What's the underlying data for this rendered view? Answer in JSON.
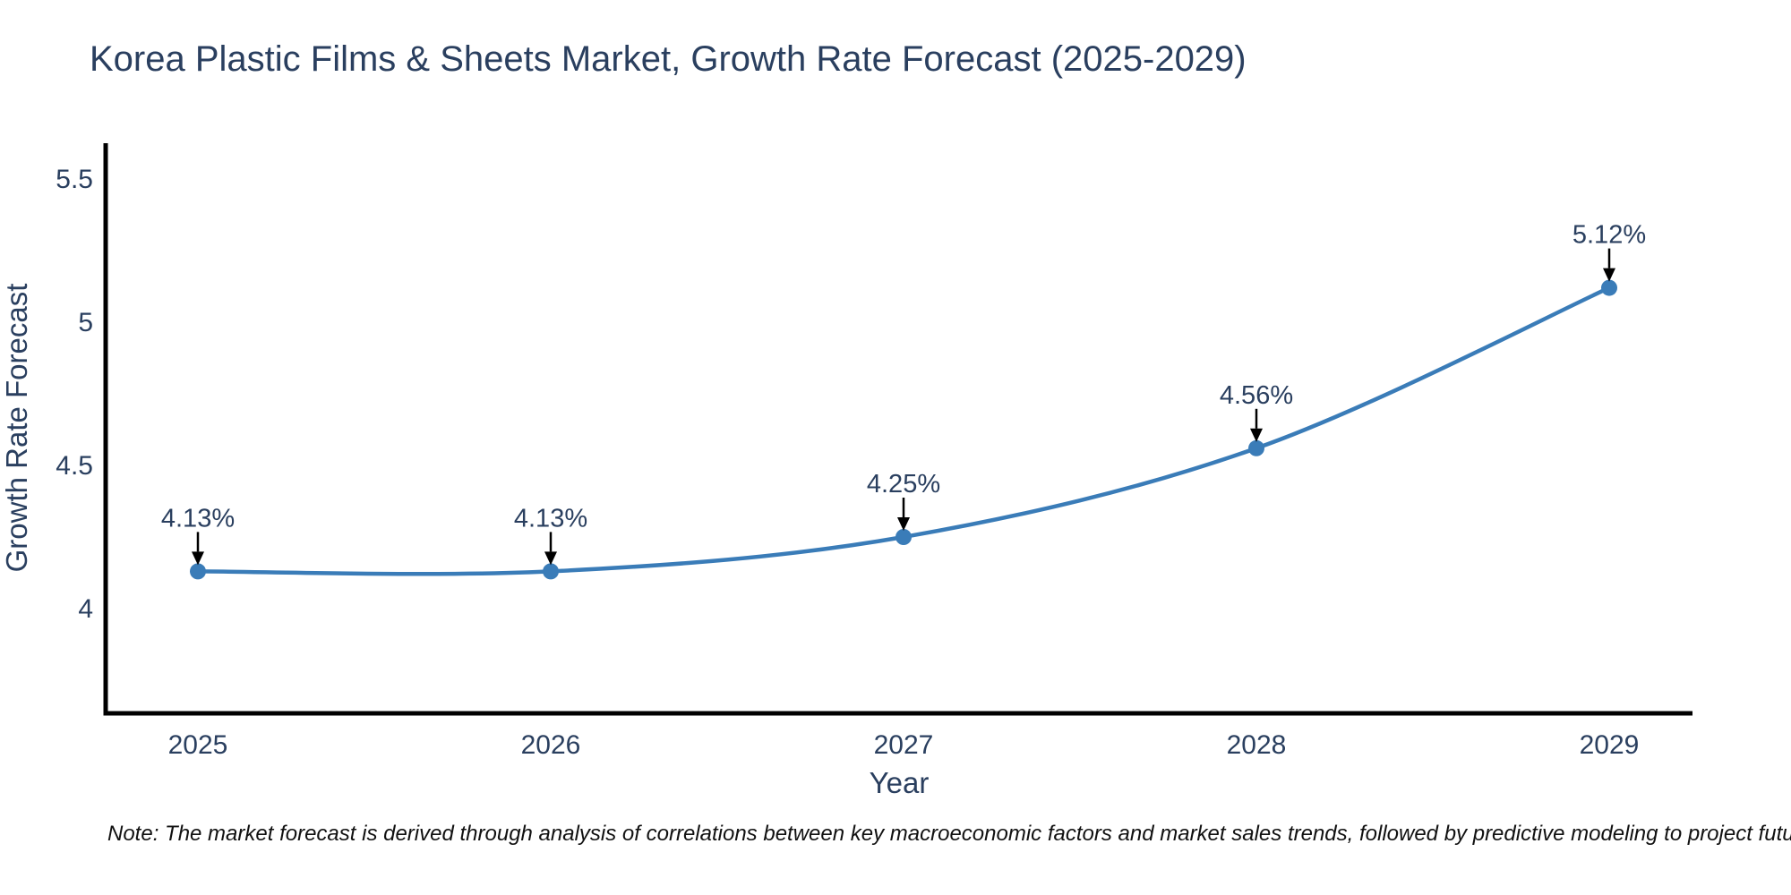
{
  "title": "Korea Plastic Films & Sheets Market, Growth Rate Forecast (2025-2029)",
  "note": "Note: The market forecast is derived through analysis of correlations between key macroeconomic factors and market sales trends, followed by predictive modeling to project future sales",
  "chart_data": {
    "type": "line",
    "title": "Korea Plastic Films & Sheets Market, Growth Rate Forecast (2025-2029)",
    "x": [
      2025,
      2026,
      2027,
      2028,
      2029
    ],
    "series": [
      {
        "name": "Growth Rate Forecast",
        "values": [
          4.13,
          4.13,
          4.25,
          4.56,
          5.12
        ]
      }
    ],
    "point_labels": [
      "4.13%",
      "4.13%",
      "4.25%",
      "4.56%",
      "5.12%"
    ],
    "xlabel": "Year",
    "ylabel": "Growth Rate Forecast",
    "xtick_labels": [
      "2025",
      "2026",
      "2027",
      "2028",
      "2029"
    ],
    "yticks": [
      4,
      4.5,
      5,
      5.5
    ],
    "ytick_labels": [
      "4",
      "4.5",
      "5",
      "5.5"
    ],
    "ylim": [
      3.64,
      5.63
    ],
    "line_shape": "spline",
    "grid": false,
    "legend": "none",
    "annotation_arrows": true,
    "colors": {
      "line": "#3a7cb8",
      "marker": "#3a7cb8",
      "axis": "#000000",
      "text": "#2a3f5f",
      "annotation_text": "#2a3f5f",
      "annotation_arrow": "#000000",
      "note_text": "#111111",
      "background": "#ffffff"
    }
  }
}
